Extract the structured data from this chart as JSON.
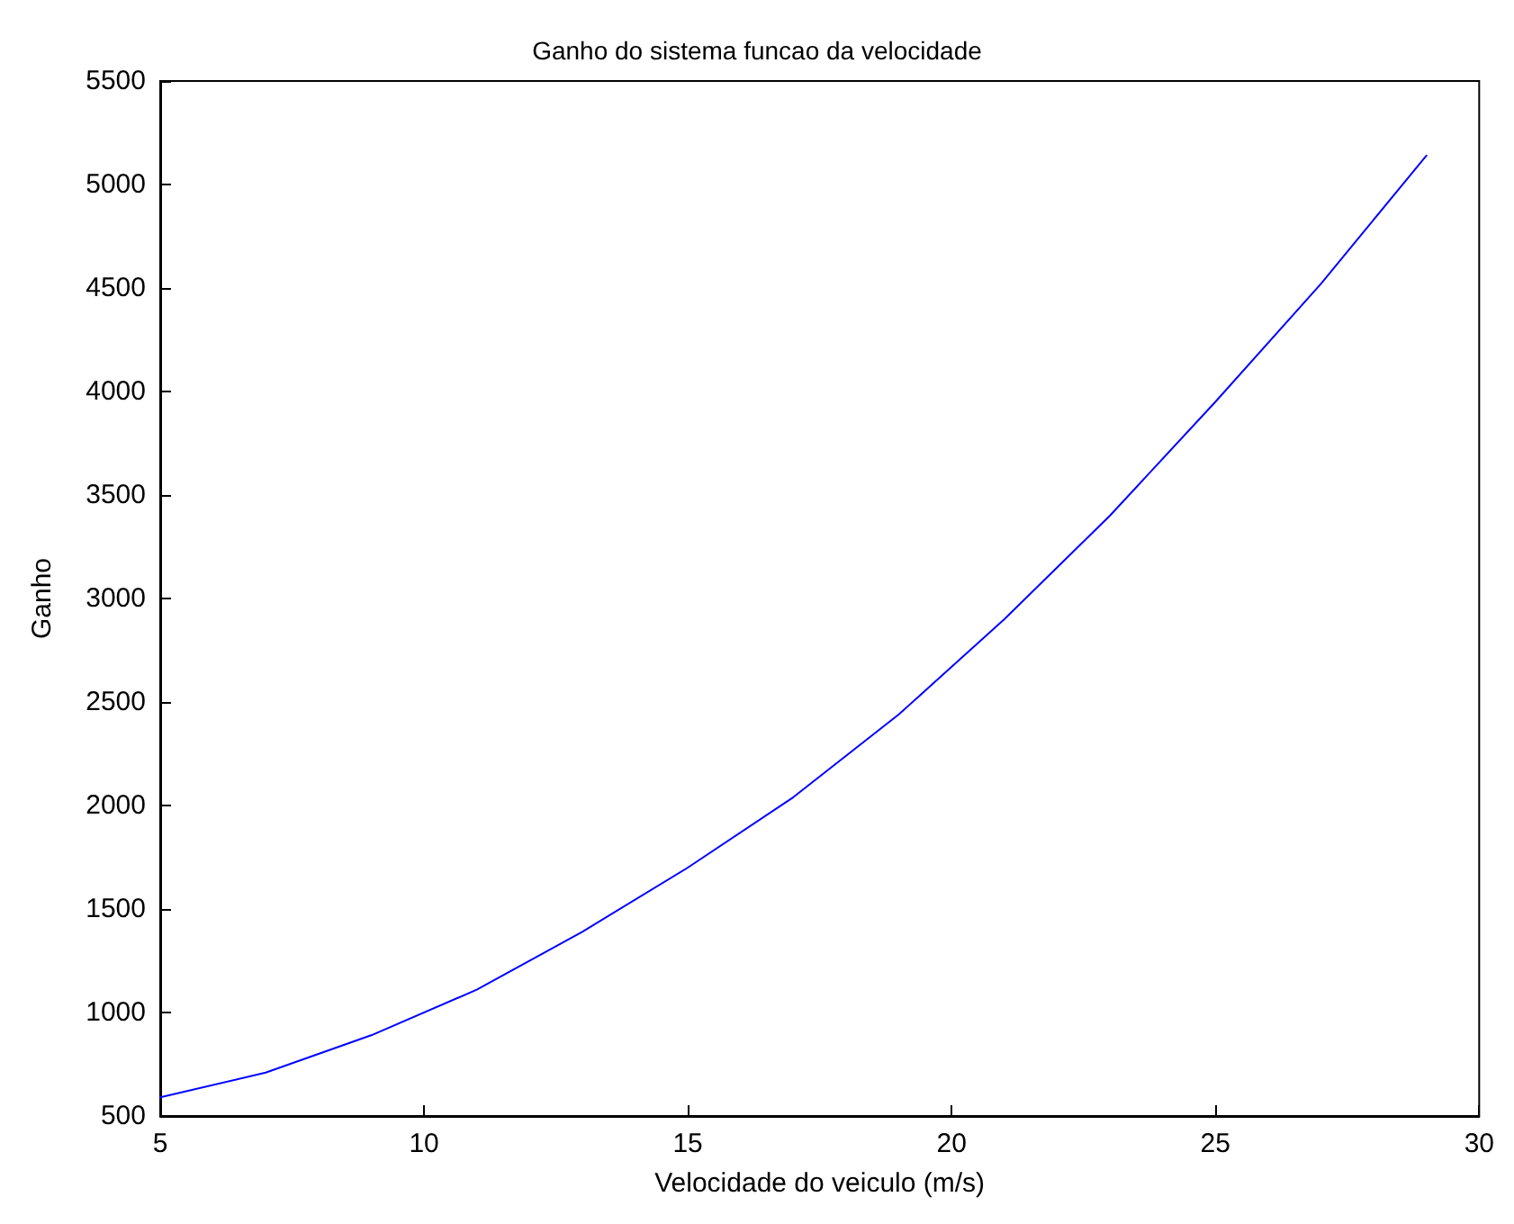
{
  "chart_data": {
    "type": "line",
    "title": "Ganho do sistema funcao da velocidade",
    "xlabel": "Velocidade do veiculo (m/s)",
    "ylabel": "Ganho",
    "x": [
      5,
      7,
      9,
      11,
      13,
      15,
      17,
      19,
      21,
      23,
      25,
      27,
      29
    ],
    "series": [
      {
        "color": "#0000ff",
        "values": [
          590,
          710,
          890,
          1110,
          1390,
          1700,
          2040,
          2440,
          2900,
          3400,
          3950,
          4520,
          5140
        ]
      }
    ],
    "xlim": [
      5,
      30
    ],
    "xticks": [
      5,
      10,
      15,
      20,
      25,
      30
    ],
    "ylim": [
      500,
      5500
    ],
    "yticks": [
      500,
      1000,
      1500,
      2000,
      2500,
      3000,
      3500,
      4000,
      4500,
      5000,
      5500
    ],
    "grid": false,
    "marker": "none",
    "line_style": "solid"
  }
}
